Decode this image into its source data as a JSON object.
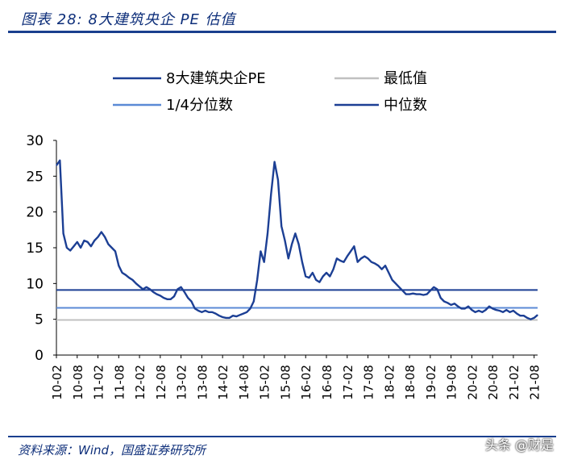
{
  "header": {
    "title": "图表 28:  8大建筑央企 PE 估值"
  },
  "footer": {
    "source": "资料来源：Wind，国盛证券研究所"
  },
  "watermark": {
    "text": "头条 @财是"
  },
  "colors": {
    "main": "#1c3f94",
    "min": "#c0c0c0",
    "quartile": "#5b8ad6",
    "median": "#1c3f94",
    "brand": "#1a3f8e"
  },
  "chart_data": {
    "type": "line",
    "ylim": [
      0,
      30
    ],
    "yticks": [
      "0",
      "5",
      "10",
      "15",
      "20",
      "25",
      "30"
    ],
    "xticks": [
      "10-02",
      "10-08",
      "11-02",
      "11-08",
      "12-02",
      "12-08",
      "13-02",
      "13-08",
      "14-02",
      "14-08",
      "15-02",
      "15-08",
      "16-02",
      "16-08",
      "17-02",
      "17-08",
      "18-02",
      "18-08",
      "19-02",
      "19-08",
      "20-02",
      "20-08",
      "21-02",
      "21-08"
    ],
    "legend": [
      "8大建筑央企PE",
      "最低值",
      "1/4分位数",
      "中位数"
    ],
    "series": [
      {
        "name": "8大建筑央企PE",
        "points": [
          [
            "10-02",
            26.5
          ],
          [
            "10-03",
            27.2
          ],
          [
            "10-04",
            17.0
          ],
          [
            "10-05",
            15.0
          ],
          [
            "10-06",
            14.6
          ],
          [
            "10-07",
            15.2
          ],
          [
            "10-08",
            15.8
          ],
          [
            "10-09",
            15.0
          ],
          [
            "10-10",
            16.0
          ],
          [
            "10-11",
            15.8
          ],
          [
            "10-12",
            15.2
          ],
          [
            "11-01",
            16.0
          ],
          [
            "11-02",
            16.5
          ],
          [
            "11-03",
            17.2
          ],
          [
            "11-04",
            16.5
          ],
          [
            "11-05",
            15.5
          ],
          [
            "11-06",
            15.0
          ],
          [
            "11-07",
            14.5
          ],
          [
            "11-08",
            12.5
          ],
          [
            "11-09",
            11.5
          ],
          [
            "11-10",
            11.2
          ],
          [
            "11-11",
            10.8
          ],
          [
            "11-12",
            10.5
          ],
          [
            "12-01",
            10.0
          ],
          [
            "12-02",
            9.6
          ],
          [
            "12-03",
            9.2
          ],
          [
            "12-04",
            9.5
          ],
          [
            "12-05",
            9.2
          ],
          [
            "12-06",
            8.8
          ],
          [
            "12-07",
            8.5
          ],
          [
            "12-08",
            8.3
          ],
          [
            "12-09",
            8.0
          ],
          [
            "12-10",
            7.8
          ],
          [
            "12-11",
            7.8
          ],
          [
            "12-12",
            8.2
          ],
          [
            "13-01",
            9.2
          ],
          [
            "13-02",
            9.5
          ],
          [
            "13-03",
            8.8
          ],
          [
            "13-04",
            8.0
          ],
          [
            "13-05",
            7.5
          ],
          [
            "13-06",
            6.5
          ],
          [
            "13-07",
            6.2
          ],
          [
            "13-08",
            6.0
          ],
          [
            "13-09",
            6.2
          ],
          [
            "13-10",
            6.0
          ],
          [
            "13-11",
            6.0
          ],
          [
            "13-12",
            5.8
          ],
          [
            "14-01",
            5.5
          ],
          [
            "14-02",
            5.3
          ],
          [
            "14-03",
            5.2
          ],
          [
            "14-04",
            5.2
          ],
          [
            "14-05",
            5.5
          ],
          [
            "14-06",
            5.4
          ],
          [
            "14-07",
            5.6
          ],
          [
            "14-08",
            5.8
          ],
          [
            "14-09",
            6.0
          ],
          [
            "14-10",
            6.5
          ],
          [
            "14-11",
            7.5
          ],
          [
            "14-12",
            10.5
          ],
          [
            "15-01",
            14.5
          ],
          [
            "15-02",
            13.0
          ],
          [
            "15-03",
            17.0
          ],
          [
            "15-04",
            22.5
          ],
          [
            "15-05",
            27.0
          ],
          [
            "15-06",
            24.5
          ],
          [
            "15-07",
            18.0
          ],
          [
            "15-08",
            16.0
          ],
          [
            "15-09",
            13.5
          ],
          [
            "15-10",
            15.5
          ],
          [
            "15-11",
            17.0
          ],
          [
            "15-12",
            15.5
          ],
          [
            "16-01",
            13.0
          ],
          [
            "16-02",
            11.0
          ],
          [
            "16-03",
            10.8
          ],
          [
            "16-04",
            11.5
          ],
          [
            "16-05",
            10.5
          ],
          [
            "16-06",
            10.2
          ],
          [
            "16-07",
            11.0
          ],
          [
            "16-08",
            11.5
          ],
          [
            "16-09",
            11.0
          ],
          [
            "16-10",
            12.0
          ],
          [
            "16-11",
            13.5
          ],
          [
            "16-12",
            13.2
          ],
          [
            "17-01",
            13.0
          ],
          [
            "17-02",
            13.8
          ],
          [
            "17-03",
            14.5
          ],
          [
            "17-04",
            15.2
          ],
          [
            "17-05",
            13.0
          ],
          [
            "17-06",
            13.5
          ],
          [
            "17-07",
            13.8
          ],
          [
            "17-08",
            13.5
          ],
          [
            "17-09",
            13.0
          ],
          [
            "17-10",
            12.8
          ],
          [
            "17-11",
            12.5
          ],
          [
            "17-12",
            12.0
          ],
          [
            "18-01",
            12.5
          ],
          [
            "18-02",
            11.5
          ],
          [
            "18-03",
            10.5
          ],
          [
            "18-04",
            10.0
          ],
          [
            "18-05",
            9.5
          ],
          [
            "18-06",
            9.0
          ],
          [
            "18-07",
            8.5
          ],
          [
            "18-08",
            8.5
          ],
          [
            "18-09",
            8.6
          ],
          [
            "18-10",
            8.5
          ],
          [
            "18-11",
            8.5
          ],
          [
            "18-12",
            8.4
          ],
          [
            "19-01",
            8.5
          ],
          [
            "19-02",
            9.0
          ],
          [
            "19-03",
            9.5
          ],
          [
            "19-04",
            9.2
          ],
          [
            "19-05",
            8.0
          ],
          [
            "19-06",
            7.5
          ],
          [
            "19-07",
            7.3
          ],
          [
            "19-08",
            7.0
          ],
          [
            "19-09",
            7.2
          ],
          [
            "19-10",
            6.8
          ],
          [
            "19-11",
            6.5
          ],
          [
            "19-12",
            6.5
          ],
          [
            "20-01",
            6.8
          ],
          [
            "20-02",
            6.3
          ],
          [
            "20-03",
            6.0
          ],
          [
            "20-04",
            6.2
          ],
          [
            "20-05",
            6.0
          ],
          [
            "20-06",
            6.3
          ],
          [
            "20-07",
            6.8
          ],
          [
            "20-08",
            6.5
          ],
          [
            "20-09",
            6.3
          ],
          [
            "20-10",
            6.2
          ],
          [
            "20-11",
            6.0
          ],
          [
            "20-12",
            6.3
          ],
          [
            "21-01",
            6.0
          ],
          [
            "21-02",
            6.2
          ],
          [
            "21-03",
            5.8
          ],
          [
            "21-04",
            5.5
          ],
          [
            "21-05",
            5.5
          ],
          [
            "21-06",
            5.2
          ],
          [
            "21-07",
            5.0
          ],
          [
            "21-08",
            5.2
          ],
          [
            "21-09",
            5.6
          ]
        ]
      },
      {
        "name": "最低值",
        "value": 4.9
      },
      {
        "name": "1/4分位数",
        "value": 6.6
      },
      {
        "name": "中位数",
        "value": 9.1
      }
    ]
  }
}
